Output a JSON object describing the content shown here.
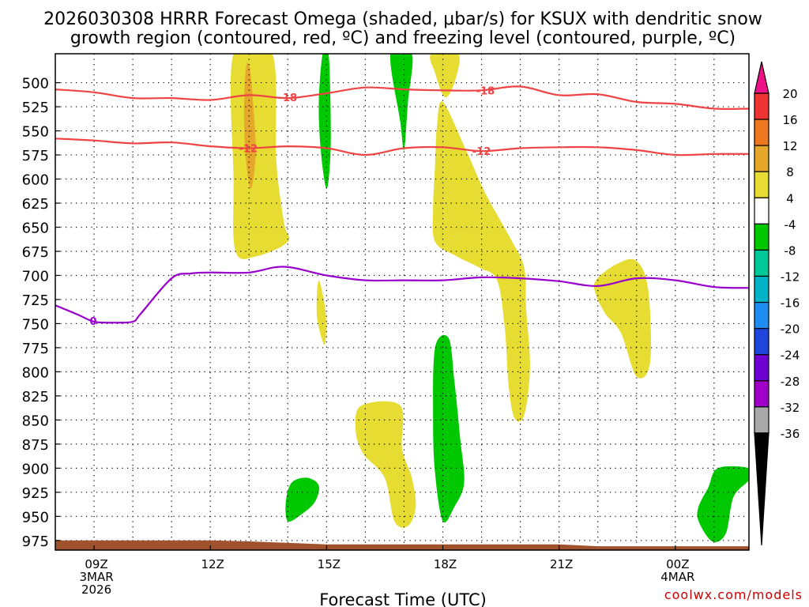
{
  "chart_data": {
    "type": "heatmap",
    "title_line1": "2026030308 HRRR Forecast Omega (shaded, μbar/s) for KSUX with dendritic snow",
    "title_line2": "growth region (contoured, red, ºC) and freezing level (contoured, purple, ºC)",
    "xlabel": "Forecast Time (UTC)",
    "ylabel": "",
    "credit": "coolwx.com/models",
    "xlim": [
      8,
      25.9
    ],
    "ylim": [
      470,
      985
    ],
    "x_ticks": [
      {
        "x": 9,
        "lines": [
          "09Z",
          "3MAR",
          "2026"
        ]
      },
      {
        "x": 12,
        "lines": [
          "12Z"
        ]
      },
      {
        "x": 15,
        "lines": [
          "15Z"
        ]
      },
      {
        "x": 18,
        "lines": [
          "18Z"
        ]
      },
      {
        "x": 21,
        "lines": [
          "21Z"
        ]
      },
      {
        "x": 24,
        "lines": [
          "00Z",
          "4MAR"
        ]
      }
    ],
    "y_ticks": [
      500,
      525,
      550,
      575,
      600,
      625,
      650,
      675,
      700,
      725,
      750,
      775,
      800,
      825,
      850,
      875,
      900,
      925,
      950,
      975
    ],
    "grid": true,
    "colorbar": {
      "labels": [
        "20",
        "16",
        "12",
        "8",
        "4",
        "-4",
        "-8",
        "-12",
        "-16",
        "-20",
        "-24",
        "-28",
        "-32",
        "-36"
      ],
      "colors": [
        "#ee1188",
        "#ee3333",
        "#ee7722",
        "#e6a82a",
        "#e6dc32",
        "#ffffff",
        "#00c800",
        "#00c896",
        "#00b4c8",
        "#1e8cf0",
        "#1e46dc",
        "#6e00d2",
        "#a000c8",
        "#aaaaaa",
        "#000000"
      ]
    },
    "omega_regions": [
      {
        "level": 4,
        "color": "#e6dc32",
        "pts": [
          [
            12.6,
            470
          ],
          [
            13.6,
            470
          ],
          [
            13.7,
            580
          ],
          [
            13.9,
            645
          ],
          [
            14.0,
            665
          ],
          [
            13.2,
            680
          ],
          [
            12.65,
            675
          ],
          [
            12.6,
            600
          ]
        ]
      },
      {
        "level": 8,
        "color": "#e6a82a",
        "pts": [
          [
            12.92,
            485
          ],
          [
            13.02,
            485
          ],
          [
            13.12,
            530
          ],
          [
            13.17,
            575
          ],
          [
            13.05,
            610
          ],
          [
            12.92,
            580
          ],
          [
            12.87,
            530
          ]
        ]
      },
      {
        "level": -4,
        "color": "#00c800",
        "pts": [
          [
            14.9,
            470
          ],
          [
            15.05,
            470
          ],
          [
            15.1,
            520
          ],
          [
            15.1,
            575
          ],
          [
            15.0,
            610
          ],
          [
            14.85,
            570
          ],
          [
            14.8,
            520
          ]
        ]
      },
      {
        "level": -4,
        "color": "#00c800",
        "pts": [
          [
            16.65,
            470
          ],
          [
            17.2,
            470
          ],
          [
            17.1,
            520
          ],
          [
            17.0,
            570
          ],
          [
            16.9,
            540
          ]
        ]
      },
      {
        "level": 4,
        "color": "#e6dc32",
        "pts": [
          [
            17.7,
            470
          ],
          [
            18.4,
            470
          ],
          [
            18.3,
            500
          ],
          [
            18.05,
            515
          ],
          [
            17.8,
            490
          ]
        ]
      },
      {
        "level": 4,
        "color": "#e6dc32",
        "pts": [
          [
            18.0,
            520
          ],
          [
            18.6,
            570
          ],
          [
            19.1,
            615
          ],
          [
            19.75,
            662
          ],
          [
            20.1,
            692
          ],
          [
            20.15,
            735
          ],
          [
            20.25,
            795
          ],
          [
            20.1,
            845
          ],
          [
            19.85,
            848
          ],
          [
            19.7,
            815
          ],
          [
            19.6,
            755
          ],
          [
            19.4,
            705
          ],
          [
            18.95,
            692
          ],
          [
            18.35,
            680
          ],
          [
            17.8,
            665
          ],
          [
            17.75,
            630
          ],
          [
            17.8,
            585
          ],
          [
            17.85,
            545
          ]
        ]
      },
      {
        "level": 4,
        "color": "#e6dc32",
        "pts": [
          [
            14.8,
            705
          ],
          [
            14.98,
            740
          ],
          [
            14.95,
            772
          ],
          [
            14.75,
            742
          ]
        ]
      },
      {
        "level": 4,
        "color": "#e6dc32",
        "pts": [
          [
            21.95,
            705
          ],
          [
            22.5,
            688
          ],
          [
            23.0,
            685
          ],
          [
            23.3,
            715
          ],
          [
            23.35,
            790
          ],
          [
            23.0,
            805
          ],
          [
            22.6,
            760
          ],
          [
            22.2,
            740
          ],
          [
            21.95,
            720
          ]
        ]
      },
      {
        "level": -4,
        "color": "#00c800",
        "pts": [
          [
            17.8,
            775
          ],
          [
            18.15,
            765
          ],
          [
            18.3,
            810
          ],
          [
            18.45,
            870
          ],
          [
            18.55,
            915
          ],
          [
            18.3,
            940
          ],
          [
            18.0,
            955
          ],
          [
            17.8,
            905
          ],
          [
            17.75,
            850
          ]
        ]
      },
      {
        "level": 4,
        "color": "#e6dc32",
        "pts": [
          [
            15.9,
            835
          ],
          [
            16.9,
            835
          ],
          [
            16.95,
            880
          ],
          [
            17.2,
            910
          ],
          [
            17.3,
            940
          ],
          [
            17.1,
            960
          ],
          [
            16.75,
            955
          ],
          [
            16.5,
            910
          ],
          [
            15.95,
            885
          ],
          [
            15.75,
            860
          ]
        ]
      },
      {
        "level": -4,
        "color": "#00c800",
        "pts": [
          [
            14.1,
            915
          ],
          [
            14.5,
            910
          ],
          [
            14.8,
            918
          ],
          [
            14.7,
            935
          ],
          [
            14.35,
            948
          ],
          [
            14.0,
            955
          ],
          [
            13.95,
            935
          ]
        ]
      },
      {
        "level": -4,
        "color": "#00c800",
        "pts": [
          [
            25.1,
            900
          ],
          [
            25.9,
            900
          ],
          [
            25.9,
            912
          ],
          [
            25.5,
            930
          ],
          [
            25.3,
            968
          ],
          [
            24.95,
            976
          ],
          [
            24.6,
            955
          ],
          [
            24.6,
            940
          ],
          [
            24.85,
            920
          ]
        ]
      }
    ],
    "isotherms": [
      {
        "label": "-18",
        "color": "#ee4444",
        "pts": [
          [
            8,
            507
          ],
          [
            9,
            510
          ],
          [
            10,
            516
          ],
          [
            11,
            516
          ],
          [
            12,
            518
          ],
          [
            13,
            513
          ],
          [
            14,
            516
          ],
          [
            15,
            511
          ],
          [
            16,
            505
          ],
          [
            17,
            507
          ],
          [
            18,
            508
          ],
          [
            19,
            508
          ],
          [
            20,
            504
          ],
          [
            21,
            513
          ],
          [
            22,
            512
          ],
          [
            23,
            520
          ],
          [
            24,
            522
          ],
          [
            25,
            527
          ],
          [
            25.9,
            527
          ]
        ],
        "labels": [
          [
            14.0,
            515
          ],
          [
            19.1,
            508
          ]
        ]
      },
      {
        "label": "-12",
        "color": "#ee4444",
        "pts": [
          [
            8,
            558
          ],
          [
            9,
            560
          ],
          [
            10,
            563
          ],
          [
            11,
            562
          ],
          [
            12,
            566
          ],
          [
            13,
            568
          ],
          [
            14,
            566
          ],
          [
            15,
            568
          ],
          [
            16,
            575
          ],
          [
            17,
            568
          ],
          [
            18,
            567
          ],
          [
            19,
            571
          ],
          [
            20,
            568
          ],
          [
            21,
            567
          ],
          [
            22,
            567
          ],
          [
            23,
            570
          ],
          [
            24,
            575
          ],
          [
            25,
            574
          ],
          [
            25.9,
            574
          ]
        ],
        "labels": [
          [
            12.98,
            568
          ],
          [
            19.0,
            571
          ]
        ]
      },
      {
        "label": "0",
        "color": "#9900cc",
        "pts": [
          [
            8,
            731
          ],
          [
            8.6,
            741
          ],
          [
            9,
            748
          ],
          [
            9.5,
            749
          ],
          [
            10,
            748
          ],
          [
            10.2,
            740
          ],
          [
            11.0,
            703
          ],
          [
            11.5,
            698
          ],
          [
            12,
            697
          ],
          [
            13.0,
            697
          ],
          [
            13.9,
            691
          ],
          [
            15,
            700
          ],
          [
            16,
            705
          ],
          [
            17,
            705
          ],
          [
            18,
            705
          ],
          [
            19,
            702
          ],
          [
            20,
            703
          ],
          [
            21,
            706
          ],
          [
            22,
            711
          ],
          [
            23,
            703
          ],
          [
            24,
            705
          ],
          [
            25,
            712
          ],
          [
            25.9,
            713
          ]
        ],
        "labels": [
          [
            8.98,
            747
          ]
        ]
      }
    ],
    "ground": {
      "color": "#a0522d",
      "top_pts": [
        [
          8,
          975
        ],
        [
          10,
          975
        ],
        [
          12,
          975
        ],
        [
          13,
          976
        ],
        [
          15,
          979
        ],
        [
          16,
          979
        ],
        [
          17,
          979
        ],
        [
          18,
          979
        ],
        [
          20,
          979
        ],
        [
          21,
          979
        ],
        [
          22,
          981
        ],
        [
          25.9,
          981
        ]
      ],
      "bottom": 985
    }
  }
}
